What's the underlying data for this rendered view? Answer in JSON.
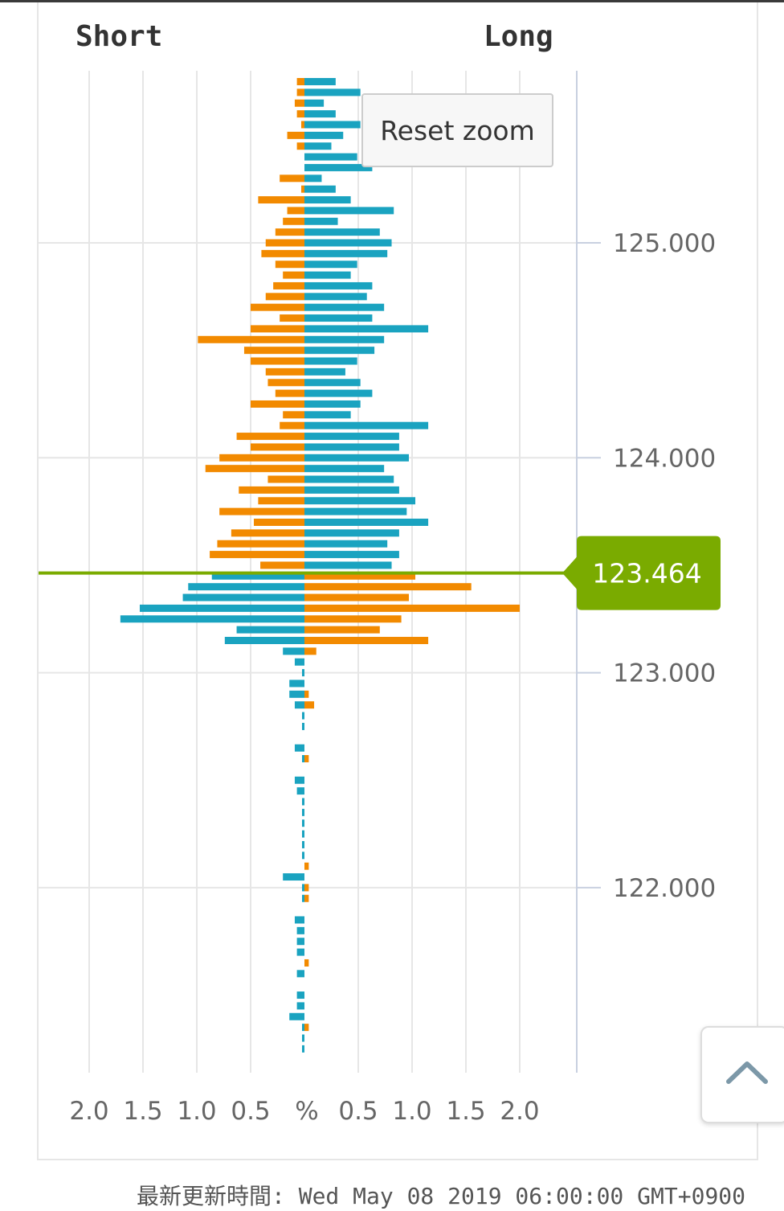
{
  "chart_data": {
    "type": "bar",
    "orientation": "horizontal-diverging",
    "left_label": "Short",
    "right_label": "Long",
    "x_center_label": "%",
    "x_ticks_left": [
      "2.0",
      "1.5",
      "1.0",
      "0.5"
    ],
    "x_ticks_right": [
      "0.5",
      "1.0",
      "1.5",
      "2.0"
    ],
    "x_range": [
      -2.5,
      2.5
    ],
    "y_ticks": [
      "125.000",
      "124.000",
      "123.000",
      "122.000"
    ],
    "y_range": [
      120.72,
      125.81
    ],
    "bucket_size": 0.05,
    "current_price": 123.464,
    "current_price_label": "123.464",
    "colors": {
      "blue": "#1aa3c0",
      "orange": "#f28a00",
      "price_line": "#7aab00",
      "grid": "#e6e6e6",
      "axis_line": "#c8d0e0"
    },
    "series_orange_short_above": [
      {
        "price": 125.75,
        "value": 0.07
      },
      {
        "price": 125.7,
        "value": 0.07
      },
      {
        "price": 125.65,
        "value": 0.09
      },
      {
        "price": 125.6,
        "value": 0.07
      },
      {
        "price": 125.55,
        "value": 0.03
      },
      {
        "price": 125.5,
        "value": 0.16
      },
      {
        "price": 125.45,
        "value": 0.07
      },
      {
        "price": 125.3,
        "value": 0.23
      },
      {
        "price": 125.25,
        "value": 0.03
      },
      {
        "price": 125.2,
        "value": 0.43
      },
      {
        "price": 125.15,
        "value": 0.16
      },
      {
        "price": 125.1,
        "value": 0.2
      },
      {
        "price": 125.05,
        "value": 0.27
      },
      {
        "price": 125.0,
        "value": 0.36
      },
      {
        "price": 124.95,
        "value": 0.4
      },
      {
        "price": 124.9,
        "value": 0.27
      },
      {
        "price": 124.85,
        "value": 0.2
      },
      {
        "price": 124.8,
        "value": 0.29
      },
      {
        "price": 124.75,
        "value": 0.36
      },
      {
        "price": 124.7,
        "value": 0.5
      },
      {
        "price": 124.65,
        "value": 0.23
      },
      {
        "price": 124.6,
        "value": 0.5
      },
      {
        "price": 124.55,
        "value": 0.99
      },
      {
        "price": 124.5,
        "value": 0.56
      },
      {
        "price": 124.45,
        "value": 0.5
      },
      {
        "price": 124.4,
        "value": 0.36
      },
      {
        "price": 124.35,
        "value": 0.34
      },
      {
        "price": 124.3,
        "value": 0.27
      },
      {
        "price": 124.25,
        "value": 0.5
      },
      {
        "price": 124.2,
        "value": 0.2
      },
      {
        "price": 124.15,
        "value": 0.23
      },
      {
        "price": 124.1,
        "value": 0.63
      },
      {
        "price": 124.05,
        "value": 0.5
      },
      {
        "price": 124.0,
        "value": 0.79
      },
      {
        "price": 123.95,
        "value": 0.92
      },
      {
        "price": 123.9,
        "value": 0.34
      },
      {
        "price": 123.85,
        "value": 0.61
      },
      {
        "price": 123.8,
        "value": 0.43
      },
      {
        "price": 123.75,
        "value": 0.79
      },
      {
        "price": 123.7,
        "value": 0.47
      },
      {
        "price": 123.65,
        "value": 0.68
      },
      {
        "price": 123.6,
        "value": 0.81
      },
      {
        "price": 123.55,
        "value": 0.88
      },
      {
        "price": 123.5,
        "value": 0.41
      }
    ],
    "series_blue_long_above": [
      {
        "price": 125.75,
        "value": 0.29
      },
      {
        "price": 125.7,
        "value": 0.52
      },
      {
        "price": 125.65,
        "value": 0.18
      },
      {
        "price": 125.6,
        "value": 0.29
      },
      {
        "price": 125.55,
        "value": 0.52
      },
      {
        "price": 125.5,
        "value": 0.36
      },
      {
        "price": 125.45,
        "value": 0.25
      },
      {
        "price": 125.4,
        "value": 0.49
      },
      {
        "price": 125.35,
        "value": 0.63
      },
      {
        "price": 125.3,
        "value": 0.16
      },
      {
        "price": 125.25,
        "value": 0.29
      },
      {
        "price": 125.2,
        "value": 0.43
      },
      {
        "price": 125.15,
        "value": 0.83
      },
      {
        "price": 125.1,
        "value": 0.31
      },
      {
        "price": 125.05,
        "value": 0.7
      },
      {
        "price": 125.0,
        "value": 0.81
      },
      {
        "price": 124.95,
        "value": 0.77
      },
      {
        "price": 124.9,
        "value": 0.49
      },
      {
        "price": 124.85,
        "value": 0.43
      },
      {
        "price": 124.8,
        "value": 0.63
      },
      {
        "price": 124.75,
        "value": 0.58
      },
      {
        "price": 124.7,
        "value": 0.74
      },
      {
        "price": 124.65,
        "value": 0.63
      },
      {
        "price": 124.6,
        "value": 1.15
      },
      {
        "price": 124.55,
        "value": 0.74
      },
      {
        "price": 124.5,
        "value": 0.65
      },
      {
        "price": 124.45,
        "value": 0.49
      },
      {
        "price": 124.4,
        "value": 0.38
      },
      {
        "price": 124.35,
        "value": 0.52
      },
      {
        "price": 124.3,
        "value": 0.63
      },
      {
        "price": 124.25,
        "value": 0.52
      },
      {
        "price": 124.2,
        "value": 0.43
      },
      {
        "price": 124.15,
        "value": 1.15
      },
      {
        "price": 124.1,
        "value": 0.88
      },
      {
        "price": 124.05,
        "value": 0.88
      },
      {
        "price": 124.0,
        "value": 0.97
      },
      {
        "price": 123.95,
        "value": 0.74
      },
      {
        "price": 123.9,
        "value": 0.83
      },
      {
        "price": 123.85,
        "value": 0.88
      },
      {
        "price": 123.8,
        "value": 1.03
      },
      {
        "price": 123.75,
        "value": 0.95
      },
      {
        "price": 123.7,
        "value": 1.15
      },
      {
        "price": 123.65,
        "value": 0.88
      },
      {
        "price": 123.6,
        "value": 0.77
      },
      {
        "price": 123.55,
        "value": 0.88
      },
      {
        "price": 123.5,
        "value": 0.81
      }
    ],
    "series_blue_short_below": [
      {
        "price": 123.45,
        "value": 0.86
      },
      {
        "price": 123.4,
        "value": 1.08
      },
      {
        "price": 123.35,
        "value": 1.13
      },
      {
        "price": 123.3,
        "value": 1.53
      },
      {
        "price": 123.25,
        "value": 1.71
      },
      {
        "price": 123.2,
        "value": 0.63
      },
      {
        "price": 123.15,
        "value": 0.74
      },
      {
        "price": 123.1,
        "value": 0.2
      },
      {
        "price": 123.05,
        "value": 0.09
      },
      {
        "price": 123.0,
        "value": 0.02
      },
      {
        "price": 122.95,
        "value": 0.14
      },
      {
        "price": 122.9,
        "value": 0.14
      },
      {
        "price": 122.85,
        "value": 0.09
      },
      {
        "price": 122.8,
        "value": 0.02
      },
      {
        "price": 122.75,
        "value": 0.02
      },
      {
        "price": 122.65,
        "value": 0.09
      },
      {
        "price": 122.6,
        "value": 0.02
      },
      {
        "price": 122.5,
        "value": 0.09
      },
      {
        "price": 122.45,
        "value": 0.07
      },
      {
        "price": 122.4,
        "value": 0.02
      },
      {
        "price": 122.35,
        "value": 0.02
      },
      {
        "price": 122.3,
        "value": 0.02
      },
      {
        "price": 122.25,
        "value": 0.02
      },
      {
        "price": 122.2,
        "value": 0.02
      },
      {
        "price": 122.15,
        "value": 0.02
      },
      {
        "price": 122.05,
        "value": 0.2
      },
      {
        "price": 122.0,
        "value": 0.02
      },
      {
        "price": 121.95,
        "value": 0.02
      },
      {
        "price": 121.85,
        "value": 0.09
      },
      {
        "price": 121.8,
        "value": 0.07
      },
      {
        "price": 121.75,
        "value": 0.07
      },
      {
        "price": 121.7,
        "value": 0.07
      },
      {
        "price": 121.6,
        "value": 0.07
      },
      {
        "price": 121.5,
        "value": 0.07
      },
      {
        "price": 121.45,
        "value": 0.07
      },
      {
        "price": 121.4,
        "value": 0.14
      },
      {
        "price": 121.35,
        "value": 0.02
      },
      {
        "price": 121.3,
        "value": 0.02
      },
      {
        "price": 121.25,
        "value": 0.02
      }
    ],
    "series_orange_long_below": [
      {
        "price": 123.45,
        "value": 1.03
      },
      {
        "price": 123.4,
        "value": 1.55
      },
      {
        "price": 123.35,
        "value": 0.97
      },
      {
        "price": 123.3,
        "value": 2.0
      },
      {
        "price": 123.25,
        "value": 0.9
      },
      {
        "price": 123.2,
        "value": 0.7
      },
      {
        "price": 123.15,
        "value": 1.15
      },
      {
        "price": 123.1,
        "value": 0.11
      },
      {
        "price": 122.9,
        "value": 0.04
      },
      {
        "price": 122.85,
        "value": 0.09
      },
      {
        "price": 122.6,
        "value": 0.04
      },
      {
        "price": 122.1,
        "value": 0.04
      },
      {
        "price": 122.0,
        "value": 0.04
      },
      {
        "price": 121.95,
        "value": 0.04
      },
      {
        "price": 121.65,
        "value": 0.04
      },
      {
        "price": 121.35,
        "value": 0.04
      }
    ]
  },
  "ui": {
    "reset_zoom_label": "Reset zoom",
    "back_to_top_icon": "chevron-up-icon",
    "updated_text": "最新更新時間: Wed May 08 2019 06:00:00 GMT+0900"
  }
}
